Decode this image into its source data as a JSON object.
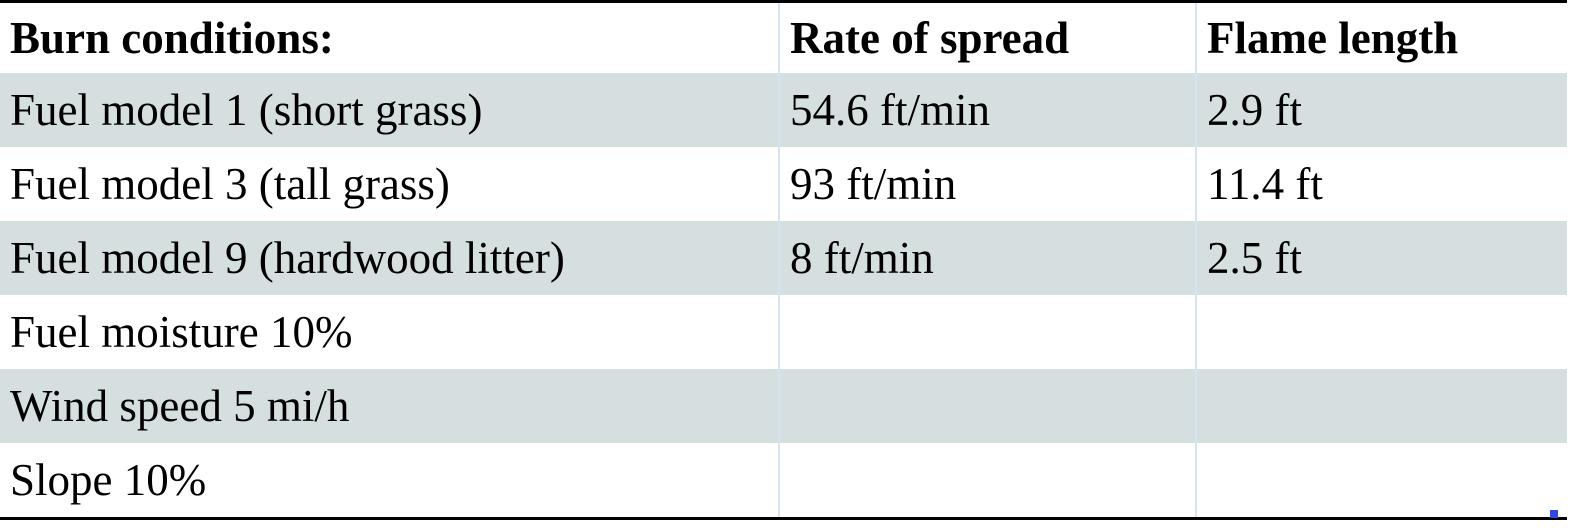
{
  "table": {
    "header": [
      "Burn conditions:",
      "Rate of spread",
      "Flame length"
    ],
    "rows": [
      [
        "Fuel model 1 (short grass)",
        "54.6 ft/min",
        "2.9 ft"
      ],
      [
        "Fuel model 3 (tall grass)",
        "93 ft/min",
        "11.4 ft"
      ],
      [
        "Fuel model 9 (hardwood litter)",
        "8 ft/min",
        "2.5 ft"
      ],
      [
        "Fuel moisture 10%"
      ],
      [
        "Wind speed 5 mi/h"
      ],
      [
        "Slope 10%"
      ]
    ]
  }
}
